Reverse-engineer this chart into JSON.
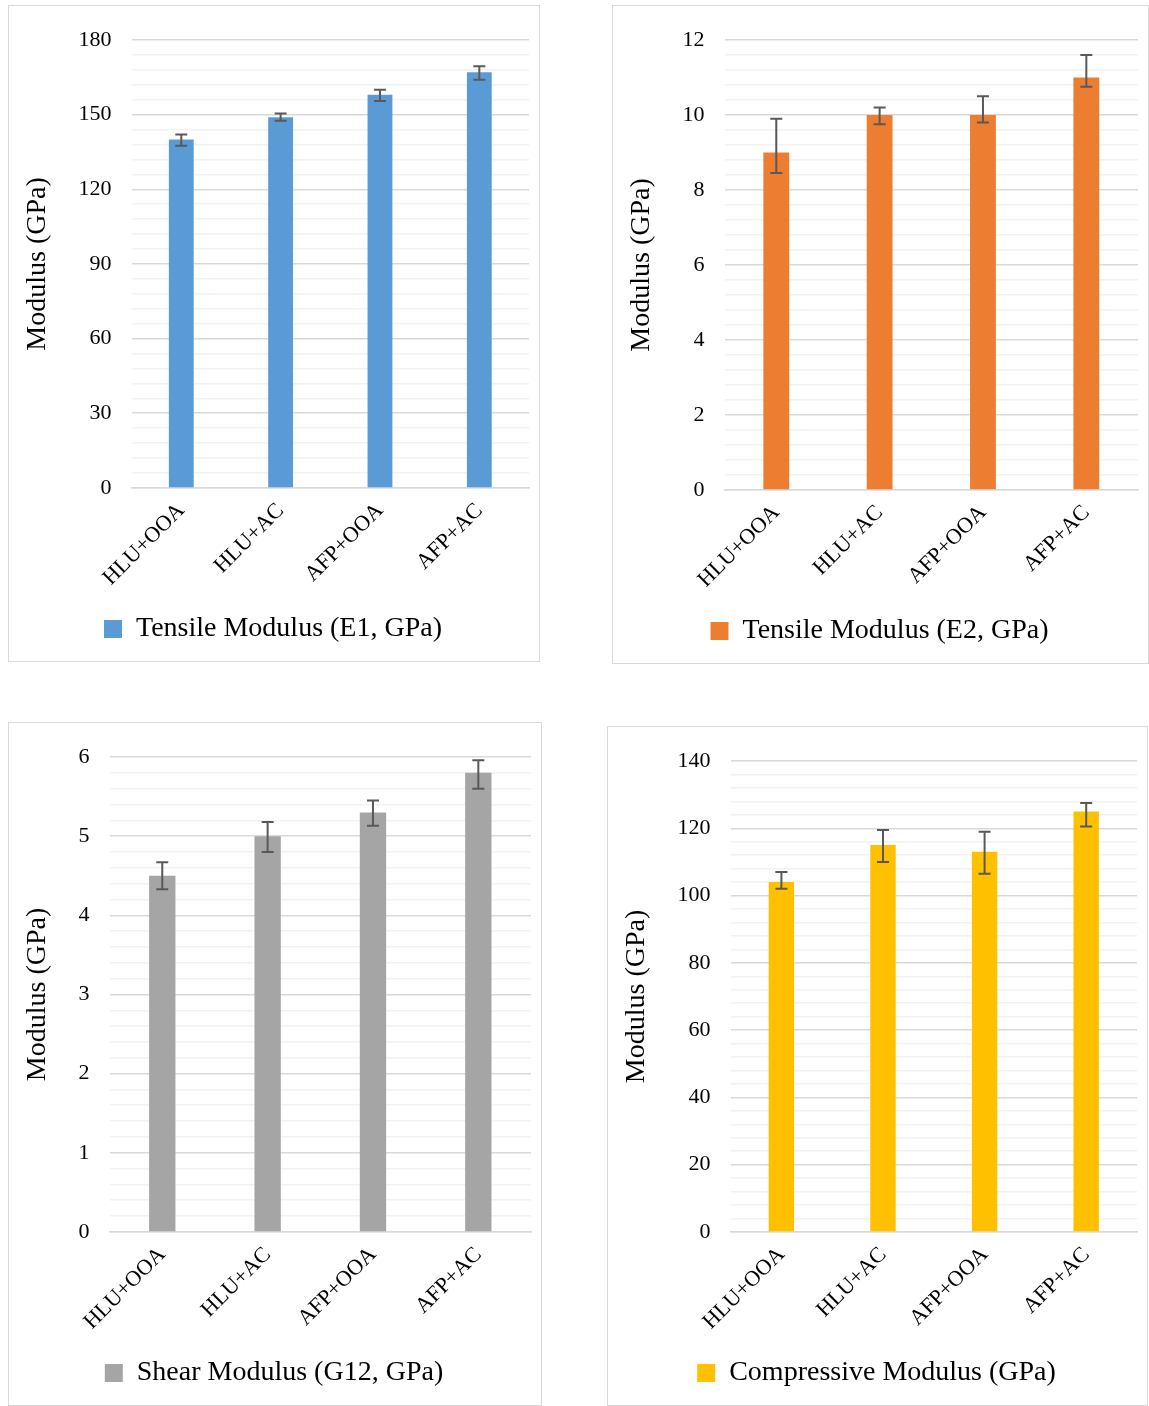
{
  "chart_data": [
    {
      "type": "bar",
      "ylabel": "Modulus (GPa)",
      "categories": [
        "HLU+OOA",
        "HLU+AC",
        "AFP+OOA",
        "AFP+AC"
      ],
      "series": [
        {
          "name": "Tensile Modulus (E1, GPa)",
          "color": "#5b9bd5",
          "values": [
            140,
            149,
            158,
            167
          ],
          "errors": [
            [
              137.5,
              142
            ],
            [
              147.5,
              150.5
            ],
            [
              155.5,
              160
            ],
            [
              164,
              169.5
            ]
          ]
        }
      ],
      "ylim": [
        0,
        180
      ],
      "yticks": [
        0,
        {
          "value": 6,
          "label": null
        },
        {
          "value": 12,
          "label": null
        },
        {
          "value": 18,
          "label": null
        },
        {
          "value": 24,
          "label": null
        },
        30,
        {
          "value": 36,
          "label": null
        },
        {
          "value": 42,
          "label": null
        },
        {
          "value": 48,
          "label": null
        },
        {
          "value": 54,
          "label": null
        },
        60,
        {
          "value": 66,
          "label": null
        },
        {
          "value": 72,
          "label": null
        },
        {
          "value": 78,
          "label": null
        },
        {
          "value": 84,
          "label": null
        },
        90,
        {
          "value": 96,
          "label": null
        },
        {
          "value": 102,
          "label": null
        },
        {
          "value": 108,
          "label": null
        },
        {
          "value": 114,
          "label": null
        },
        120,
        {
          "value": 126,
          "label": null
        },
        {
          "value": 132,
          "label": null
        },
        {
          "value": 138,
          "label": null
        },
        {
          "value": 144,
          "label": null
        },
        150,
        {
          "value": 156,
          "label": null
        },
        {
          "value": 162,
          "label": null
        },
        {
          "value": 168,
          "label": null
        },
        {
          "value": 174,
          "label": null
        },
        180
      ],
      "grid": "y",
      "legend": "bottom"
    },
    {
      "type": "bar",
      "ylabel": "Modulus (GPa)",
      "categories": [
        "HLU+OOA",
        "HLU+AC",
        "AFP+OOA",
        "AFP+AC"
      ],
      "series": [
        {
          "name": "Tensile Modulus (E2, GPa)",
          "color": "#ed7d31",
          "values": [
            9,
            10,
            10,
            11
          ],
          "errors": [
            [
              8.45,
              9.9
            ],
            [
              9.75,
              10.2
            ],
            [
              9.8,
              10.5
            ],
            [
              10.75,
              11.6
            ]
          ]
        }
      ],
      "ylim": [
        0,
        12
      ],
      "yticks": [
        0,
        {
          "value": 0.4,
          "label": null
        },
        {
          "value": 0.8,
          "label": null
        },
        {
          "value": 1.2,
          "label": null
        },
        {
          "value": 1.6,
          "label": null
        },
        2,
        {
          "value": 2.4,
          "label": null
        },
        {
          "value": 2.8,
          "label": null
        },
        {
          "value": 3.2,
          "label": null
        },
        {
          "value": 3.6,
          "label": null
        },
        4,
        {
          "value": 4.4,
          "label": null
        },
        {
          "value": 4.8,
          "label": null
        },
        {
          "value": 5.2,
          "label": null
        },
        {
          "value": 5.6,
          "label": null
        },
        6,
        {
          "value": 6.4,
          "label": null
        },
        {
          "value": 6.8,
          "label": null
        },
        {
          "value": 7.2,
          "label": null
        },
        {
          "value": 7.6,
          "label": null
        },
        8,
        {
          "value": 8.4,
          "label": null
        },
        {
          "value": 8.8,
          "label": null
        },
        {
          "value": 9.2,
          "label": null
        },
        {
          "value": 9.6,
          "label": null
        },
        10,
        {
          "value": 10.4,
          "label": null
        },
        {
          "value": 10.8,
          "label": null
        },
        {
          "value": 11.2,
          "label": null
        },
        {
          "value": 11.6,
          "label": null
        },
        12
      ],
      "grid": "y",
      "legend": "bottom"
    },
    {
      "type": "bar",
      "ylabel": "Modulus (GPa)",
      "categories": [
        "HLU+OOA",
        "HLU+AC",
        "AFP+OOA",
        "AFP+AC"
      ],
      "series": [
        {
          "name": "Shear Modulus (G12, GPa)",
          "color": "#a5a5a5",
          "values": [
            4.5,
            5,
            5.3,
            5.8
          ],
          "errors": [
            [
              4.33,
              4.67
            ],
            [
              4.8,
              5.18
            ],
            [
              5.13,
              5.45
            ],
            [
              5.6,
              5.96
            ]
          ]
        }
      ],
      "ylim": [
        0,
        6
      ],
      "yticks": [
        0,
        {
          "value": 0.2,
          "label": null
        },
        {
          "value": 0.4,
          "label": null
        },
        {
          "value": 0.6,
          "label": null
        },
        {
          "value": 0.8,
          "label": null
        },
        1,
        {
          "value": 1.2,
          "label": null
        },
        {
          "value": 1.4,
          "label": null
        },
        {
          "value": 1.6,
          "label": null
        },
        {
          "value": 1.8,
          "label": null
        },
        2,
        {
          "value": 2.2,
          "label": null
        },
        {
          "value": 2.4,
          "label": null
        },
        {
          "value": 2.6,
          "label": null
        },
        {
          "value": 2.8,
          "label": null
        },
        3,
        {
          "value": 3.2,
          "label": null
        },
        {
          "value": 3.4,
          "label": null
        },
        {
          "value": 3.6,
          "label": null
        },
        {
          "value": 3.8,
          "label": null
        },
        4,
        {
          "value": 4.2,
          "label": null
        },
        {
          "value": 4.4,
          "label": null
        },
        {
          "value": 4.6,
          "label": null
        },
        {
          "value": 4.8,
          "label": null
        },
        5,
        {
          "value": 5.2,
          "label": null
        },
        {
          "value": 5.4,
          "label": null
        },
        {
          "value": 5.6,
          "label": null
        },
        {
          "value": 5.8,
          "label": null
        },
        6
      ],
      "grid": "y",
      "legend": "bottom"
    },
    {
      "type": "bar",
      "ylabel": "Modulus (GPa)",
      "categories": [
        "HLU+OOA",
        "HLU+AC",
        "AFP+OOA",
        "AFP+AC"
      ],
      "series": [
        {
          "name": "Compressive Modulus (GPa)",
          "color": "#ffc000",
          "values": [
            104,
            115,
            113,
            125
          ],
          "errors": [
            [
              102,
              107
            ],
            [
              110,
              119.5
            ],
            [
              106.5,
              119
            ],
            [
              120.5,
              127.5
            ]
          ]
        }
      ],
      "ylim": [
        0,
        140
      ],
      "yticks": [
        0,
        {
          "value": 4,
          "label": null
        },
        {
          "value": 8,
          "label": null
        },
        {
          "value": 12,
          "label": null
        },
        {
          "value": 16,
          "label": null
        },
        20,
        {
          "value": 24,
          "label": null
        },
        {
          "value": 28,
          "label": null
        },
        {
          "value": 32,
          "label": null
        },
        {
          "value": 36,
          "label": null
        },
        40,
        {
          "value": 44,
          "label": null
        },
        {
          "value": 48,
          "label": null
        },
        {
          "value": 52,
          "label": null
        },
        {
          "value": 56,
          "label": null
        },
        60,
        {
          "value": 64,
          "label": null
        },
        {
          "value": 68,
          "label": null
        },
        {
          "value": 72,
          "label": null
        },
        {
          "value": 76,
          "label": null
        },
        80,
        {
          "value": 84,
          "label": null
        },
        {
          "value": 88,
          "label": null
        },
        {
          "value": 92,
          "label": null
        },
        {
          "value": 96,
          "label": null
        },
        100,
        {
          "value": 104,
          "label": null
        },
        {
          "value": 108,
          "label": null
        },
        {
          "value": 112,
          "label": null
        },
        {
          "value": 116,
          "label": null
        },
        120,
        {
          "value": 124,
          "label": null
        },
        {
          "value": 128,
          "label": null
        },
        {
          "value": 132,
          "label": null
        },
        {
          "value": 136,
          "label": null
        },
        140
      ],
      "grid": "y",
      "legend": "bottom"
    }
  ]
}
